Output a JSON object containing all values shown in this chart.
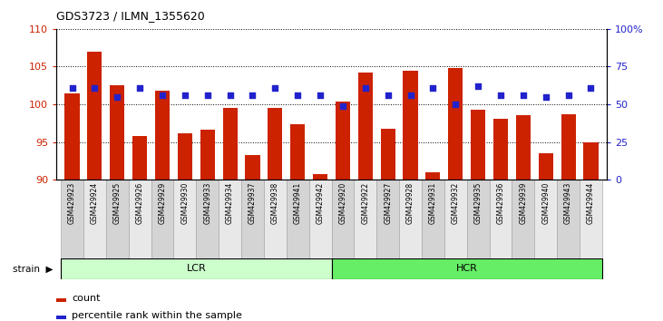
{
  "title": "GDS3723 / ILMN_1355620",
  "samples": [
    "GSM429923",
    "GSM429924",
    "GSM429925",
    "GSM429926",
    "GSM429929",
    "GSM429930",
    "GSM429933",
    "GSM429934",
    "GSM429937",
    "GSM429938",
    "GSM429941",
    "GSM429942",
    "GSM429920",
    "GSM429922",
    "GSM429927",
    "GSM429928",
    "GSM429931",
    "GSM429932",
    "GSM429935",
    "GSM429936",
    "GSM429939",
    "GSM429940",
    "GSM429943",
    "GSM429944"
  ],
  "counts": [
    101.5,
    107.0,
    102.5,
    95.8,
    101.8,
    96.2,
    96.6,
    99.5,
    93.3,
    99.5,
    97.4,
    90.8,
    100.4,
    104.2,
    96.8,
    104.5,
    91.0,
    104.8,
    99.3,
    98.1,
    98.6,
    93.5,
    98.7,
    94.9
  ],
  "percentile_ranks": [
    61,
    61,
    55,
    61,
    56,
    56,
    56,
    56,
    56,
    61,
    56,
    56,
    49,
    61,
    56,
    56,
    61,
    50,
    62,
    56,
    56,
    55,
    56,
    61
  ],
  "groups": [
    "LCR",
    "LCR",
    "LCR",
    "LCR",
    "LCR",
    "LCR",
    "LCR",
    "LCR",
    "LCR",
    "LCR",
    "LCR",
    "LCR",
    "HCR",
    "HCR",
    "HCR",
    "HCR",
    "HCR",
    "HCR",
    "HCR",
    "HCR",
    "HCR",
    "HCR",
    "HCR",
    "HCR"
  ],
  "bar_color": "#cc2200",
  "dot_color": "#2222cc",
  "lcr_color": "#ccffcc",
  "hcr_color": "#66ee66",
  "ylim_left": [
    90,
    110
  ],
  "ylim_right": [
    0,
    100
  ],
  "yticks_left": [
    90,
    95,
    100,
    105,
    110
  ],
  "yticks_right": [
    0,
    25,
    50,
    75,
    100
  ],
  "ytick_labels_right": [
    "0",
    "25",
    "50",
    "75",
    "100%"
  ],
  "tick_bg_even": "#d4d4d4",
  "tick_bg_odd": "#e8e8e8"
}
